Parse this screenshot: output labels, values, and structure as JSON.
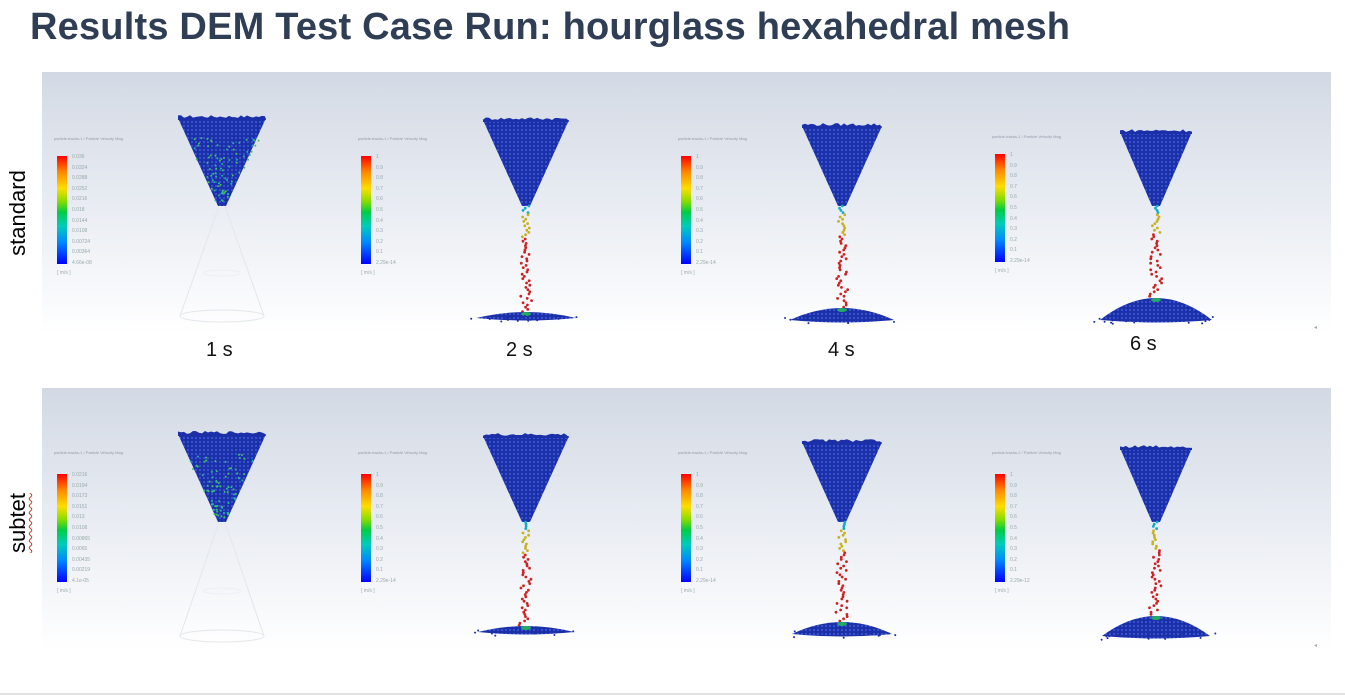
{
  "title": "Results DEM Test Case Run: hourglass hexahedral mesh",
  "rows": [
    {
      "label": "standard",
      "panels": [
        {
          "time": "1 s",
          "legend_head": "particle-tracks-1 / Particle Velocity Mag",
          "ticks": [
            "0.036",
            "0.0324",
            "0.0288",
            "0.0252",
            "0.0216",
            "0.018",
            "0.0144",
            "0.0108",
            "0.00724",
            "0.00364",
            "4.66e-08"
          ],
          "unit": "[ m/s ]"
        },
        {
          "time": "2 s",
          "legend_head": "particle-tracks-1 / Particle Velocity Mag",
          "ticks": [
            "1",
            "0.9",
            "0.8",
            "0.7",
            "0.6",
            "0.5",
            "0.4",
            "0.3",
            "0.2",
            "0.1",
            "2.29e-14"
          ],
          "unit": "[ m/s ]"
        },
        {
          "time": "4 s",
          "legend_head": "particle-tracks-1 / Particle Velocity Mag",
          "ticks": [
            "1",
            "0.9",
            "0.8",
            "0.7",
            "0.6",
            "0.5",
            "0.4",
            "0.3",
            "0.2",
            "0.1",
            "2.29e-14"
          ],
          "unit": "[ m/s ]"
        },
        {
          "time": "6 s",
          "legend_head": "particle-tracks-1 / Particle Velocity Mag",
          "ticks": [
            "1",
            "0.9",
            "0.8",
            "0.7",
            "0.6",
            "0.5",
            "0.4",
            "0.3",
            "0.2",
            "0.1",
            "2.29e-14"
          ],
          "unit": "[ m/s ]"
        }
      ]
    },
    {
      "label": "subtet",
      "panels": [
        {
          "legend_head": "particle-tracks-1 / Particle Velocity Mag",
          "ticks": [
            "0.0216",
            "0.0194",
            "0.0173",
            "0.0151",
            "0.013",
            "0.0108",
            "0.00865",
            "0.0065",
            "0.00435",
            "0.00219",
            "4.1e-05"
          ],
          "unit": "[ m/s ]"
        },
        {
          "legend_head": "particle-tracks-1 / Particle Velocity Mag",
          "ticks": [
            "1",
            "0.9",
            "0.8",
            "0.7",
            "0.6",
            "0.5",
            "0.4",
            "0.3",
            "0.2",
            "0.1",
            "2.29e-14"
          ],
          "unit": "[ m/s ]"
        },
        {
          "legend_head": "particle-tracks-1 / Particle Velocity Mag",
          "ticks": [
            "1",
            "0.9",
            "0.8",
            "0.7",
            "0.6",
            "0.5",
            "0.4",
            "0.3",
            "0.2",
            "0.1",
            "2.29e-14"
          ],
          "unit": "[ m/s ]"
        },
        {
          "legend_head": "particle-tracks-1 / Particle Velocity Mag",
          "ticks": [
            "1",
            "0.9",
            "0.8",
            "0.7",
            "0.6",
            "0.5",
            "0.4",
            "0.3",
            "0.2",
            "0.1",
            "2.29e-12"
          ],
          "unit": "[ m/s ]"
        }
      ]
    }
  ],
  "colors": {
    "title": "#2f3e55",
    "particle_blue": "#1a2fa8",
    "stream_red": "#cc2222",
    "stream_yellow": "#c8b020",
    "stream_cyan": "#11aacc"
  }
}
